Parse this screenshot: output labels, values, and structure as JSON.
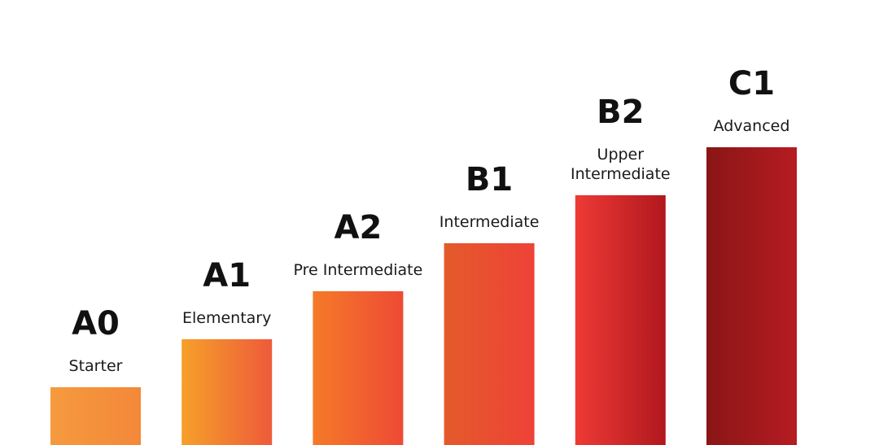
{
  "chart_data": {
    "type": "bar",
    "title": "",
    "xlabel": "",
    "ylabel": "",
    "categories": [
      "A0",
      "A1",
      "A2",
      "B1",
      "B2",
      "C1"
    ],
    "level_names": [
      [
        "Starter"
      ],
      [
        "Elementary"
      ],
      [
        "Pre Intermediate"
      ],
      [
        "Intermediate"
      ],
      [
        "Upper",
        "Intermediate"
      ],
      [
        "Advanced"
      ]
    ],
    "values": [
      1,
      2,
      3,
      4,
      5,
      6
    ],
    "ylim": [
      0,
      6.6
    ],
    "grid": false,
    "legend": "none",
    "colors": [
      [
        "#f59a3e",
        "#f4883a"
      ],
      [
        "#f6a02a",
        "#ee5a3a"
      ],
      [
        "#f57a28",
        "#ee4a35"
      ],
      [
        "#e45a2a",
        "#ee4238"
      ],
      [
        "#ee3a35",
        "#b0181e"
      ],
      [
        "#8a1515",
        "#b51c22"
      ]
    ]
  }
}
